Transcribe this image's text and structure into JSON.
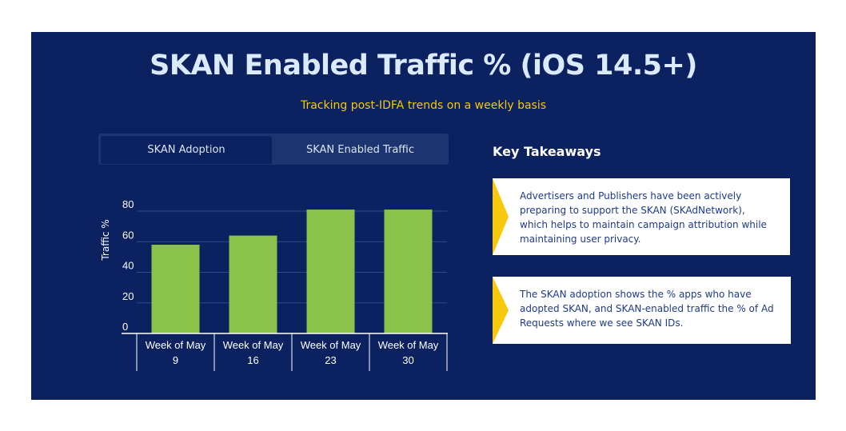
{
  "header": {
    "title": "SKAN Enabled Traffic % (iOS 14.5+)",
    "subtitle": "Tracking post-IDFA trends on a weekly basis"
  },
  "tabs": [
    {
      "label": "SKAN Adoption",
      "active": true
    },
    {
      "label": "SKAN Enabled Traffic",
      "active": false
    }
  ],
  "chart_data": {
    "type": "bar",
    "categories": [
      [
        "Week of May",
        "9"
      ],
      [
        "Week of May",
        "16"
      ],
      [
        "Week of May",
        "23"
      ],
      [
        "Week of May",
        "30"
      ]
    ],
    "values": [
      58,
      64,
      81,
      81
    ],
    "xlabel": "",
    "ylabel": "Traffic %",
    "ylim": [
      0,
      80
    ],
    "yticks": [
      0,
      20,
      40,
      60,
      80
    ],
    "grid": true,
    "bar_color": "#8bc34a"
  },
  "takeaways": {
    "title": "Key Takeaways",
    "items": [
      "Advertisers and Publishers have been actively preparing to support the SKAN (SKAdNetwork), which helps to maintain campaign attribution while maintaining user privacy.",
      "The SKAN adoption shows the % apps who have adopted SKAN, and SKAN-enabled traffic the % of Ad Requests where we see SKAN IDs."
    ],
    "accent_color": "#f6c90e"
  },
  "colors": {
    "background": "#0b2160",
    "title": "#dbeafe",
    "subtitle": "#f6c90e"
  }
}
